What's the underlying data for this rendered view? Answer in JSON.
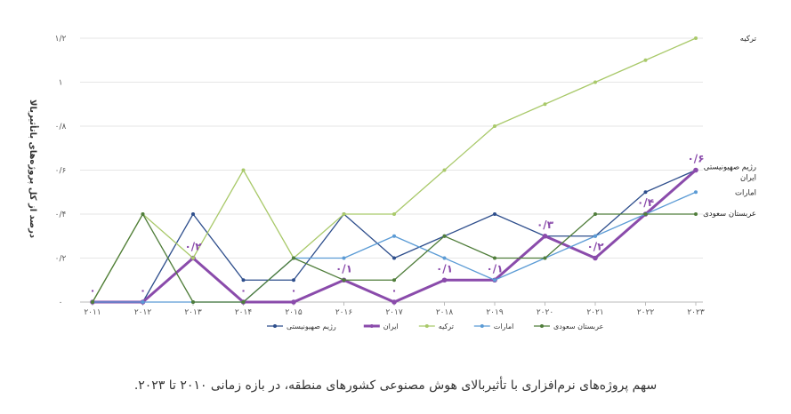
{
  "caption": "سهم پروژه‌های نرم‌افزاری با تأثیربالای هوش مصنوعی کشورهای منطقه، در بازه زمانی ۲۰۱۰ تا ۲۰۲۳.",
  "chart_data": {
    "type": "line",
    "ylabel": "درصد از کل پروژه‌های باتأثیربالا",
    "categories": [
      "۲۰۱۱",
      "۲۰۱۲",
      "۲۰۱۳",
      "۲۰۱۴",
      "۲۰۱۵",
      "۲۰۱۶",
      "۲۰۱۷",
      "۲۰۱۸",
      "۲۰۱۹",
      "۲۰۲۰",
      "۲۰۲۱",
      "۲۰۲۲",
      "۲۰۲۳"
    ],
    "yticks": [
      {
        "value": 0,
        "label": "۰"
      },
      {
        "value": 0.2,
        "label": "۰/۲"
      },
      {
        "value": 0.4,
        "label": "۰/۴"
      },
      {
        "value": 0.6,
        "label": "۰/۶"
      },
      {
        "value": 0.8,
        "label": "۰/۸"
      },
      {
        "value": 1.0,
        "label": "۱"
      },
      {
        "value": 1.2,
        "label": "۱/۲"
      }
    ],
    "ylim": [
      0,
      1.2
    ],
    "grid": true,
    "legend_position": "bottom",
    "series": [
      {
        "name": "رژیم صهیونیستی",
        "color": "#2e4e8c",
        "width": 1.3,
        "values": [
          0,
          0,
          0.4,
          0.1,
          0.1,
          0.4,
          0.2,
          0.3,
          0.4,
          0.3,
          0.3,
          0.5,
          0.6
        ]
      },
      {
        "name": "ایران",
        "color": "#8a4bab",
        "width": 3,
        "values": [
          0,
          0,
          0.2,
          0,
          0,
          0.1,
          0,
          0.1,
          0.1,
          0.3,
          0.2,
          0.4,
          0.6
        ]
      },
      {
        "name": "ترکیه",
        "color": "#a9c96a",
        "width": 1.3,
        "values": [
          0,
          0.4,
          0.2,
          0.6,
          0.2,
          0.4,
          0.4,
          0.6,
          0.8,
          0.9,
          1.0,
          1.1,
          1.2
        ]
      },
      {
        "name": "امارات",
        "color": "#5b9bd5",
        "width": 1.3,
        "values": [
          0,
          0,
          0,
          0,
          0.2,
          0.2,
          0.3,
          0.2,
          0.1,
          0.2,
          0.3,
          0.4,
          0.5
        ]
      },
      {
        "name": "عربستان سعودی",
        "color": "#4f7d3a",
        "width": 1.3,
        "values": [
          0,
          0.4,
          0,
          0,
          0.2,
          0.1,
          0.1,
          0.3,
          0.2,
          0.2,
          0.4,
          0.4,
          0.4
        ]
      }
    ],
    "data_labels": {
      "series": "ایران",
      "labels": [
        "۰",
        "۰",
        "۰/۲",
        "۰",
        "۰",
        "۰/۱",
        "۰",
        "۰/۱",
        "۰/۱",
        "۰/۳",
        "۰/۲",
        "۰/۴",
        "۰/۶"
      ]
    },
    "end_labels": [
      {
        "series": "ترکیه",
        "text": "ترکیه"
      },
      {
        "series": "رژیم صهیونیستی",
        "text": "رژیم صهیونیستی"
      },
      {
        "series": "ایران",
        "text": "ایران"
      },
      {
        "series": "امارات",
        "text": "امارات"
      },
      {
        "series": "عربستان سعودی",
        "text": "عربستان سعودی"
      }
    ]
  }
}
